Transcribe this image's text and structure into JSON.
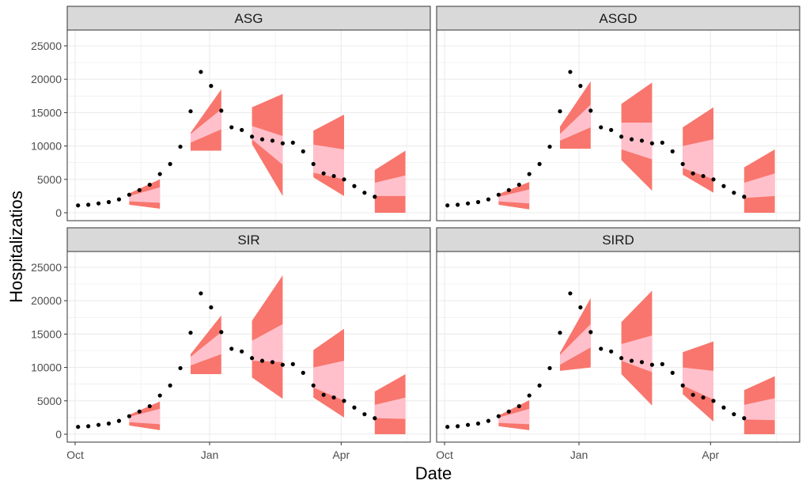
{
  "figure": {
    "xlabel": "Date",
    "ylabel": "Hospitalizatios",
    "x_ticks": [
      "Oct",
      "Jan",
      "Apr"
    ],
    "y_ticks": [
      "0",
      "5000",
      "10000",
      "15000",
      "20000",
      "25000"
    ]
  },
  "colors": {
    "outer_band": "#F8766D",
    "inner_band": "#FFC0CB",
    "points": "#000000",
    "strip": "#d9d9d9",
    "grid": "#ebebeb",
    "panel_border": "#333333"
  },
  "chart_data": [
    {
      "type": "scatter",
      "title": "ASG",
      "xlabel": "Date",
      "ylabel": "Hospitalizatios",
      "ylim": [
        0,
        25000
      ],
      "legend": "none",
      "grid": true,
      "observed": {
        "dates": [
          "2020-10-03",
          "2020-10-10",
          "2020-10-17",
          "2020-10-24",
          "2020-10-31",
          "2020-11-07",
          "2020-11-14",
          "2020-11-21",
          "2020-11-28",
          "2020-12-05",
          "2020-12-12",
          "2020-12-19",
          "2020-12-26",
          "2021-01-02",
          "2021-01-09",
          "2021-01-16",
          "2021-01-23",
          "2021-01-30",
          "2021-02-06",
          "2021-02-13",
          "2021-02-20",
          "2021-02-27",
          "2021-03-06",
          "2021-03-13",
          "2021-03-20",
          "2021-03-27",
          "2021-04-03",
          "2021-04-10",
          "2021-04-17",
          "2021-04-24",
          "2021-05-01"
        ],
        "values": [
          1100,
          1200,
          1400,
          1600,
          2000,
          2700,
          3400,
          4200,
          5800,
          7300,
          9900,
          15200,
          21100,
          19000,
          15300,
          12800,
          12400,
          11400,
          11000,
          10800,
          10400,
          10500,
          9200,
          7300,
          5900,
          5500,
          5000,
          4000,
          3000,
          2400,
          null
        ]
      },
      "forecasts": [
        {
          "x": [
            "2020-11-07",
            "2020-11-28"
          ],
          "outer": {
            "low": [
              1200,
              600
            ],
            "high": [
              2900,
              5000
            ]
          },
          "inner": {
            "low": [
              1700,
              1500
            ],
            "high": [
              2500,
              3800
            ]
          }
        },
        {
          "x": [
            "2020-12-19",
            "2021-01-09"
          ],
          "outer": {
            "low": [
              9300,
              9300
            ],
            "high": [
              12000,
              18500
            ]
          },
          "inner": {
            "low": [
              10500,
              12500
            ],
            "high": [
              11800,
              15500
            ]
          }
        },
        {
          "x": [
            "2021-01-30",
            "2021-02-20"
          ],
          "outer": {
            "low": [
              10300,
              2500
            ],
            "high": [
              15800,
              17800
            ]
          },
          "inner": {
            "low": [
              11000,
              7200
            ],
            "high": [
              13000,
              11500
            ]
          }
        },
        {
          "x": [
            "2021-03-13",
            "2021-04-03"
          ],
          "outer": {
            "low": [
              5300,
              2500
            ],
            "high": [
              12300,
              14700
            ]
          },
          "inner": {
            "low": [
              6000,
              5000
            ],
            "high": [
              10200,
              9500
            ]
          }
        },
        {
          "x": [
            "2021-04-24",
            "2021-05-15"
          ],
          "outer": {
            "low": [
              0,
              0
            ],
            "high": [
              6400,
              9300
            ]
          },
          "inner": {
            "low": [
              2500,
              2500
            ],
            "high": [
              4500,
              5600
            ]
          }
        }
      ]
    },
    {
      "type": "scatter",
      "title": "ASGD",
      "xlabel": "Date",
      "ylabel": "Hospitalizatios",
      "ylim": [
        0,
        25000
      ],
      "legend": "none",
      "grid": true,
      "observed": {
        "dates": [
          "2020-10-03",
          "2020-10-10",
          "2020-10-17",
          "2020-10-24",
          "2020-10-31",
          "2020-11-07",
          "2020-11-14",
          "2020-11-21",
          "2020-11-28",
          "2020-12-05",
          "2020-12-12",
          "2020-12-19",
          "2020-12-26",
          "2021-01-02",
          "2021-01-09",
          "2021-01-16",
          "2021-01-23",
          "2021-01-30",
          "2021-02-06",
          "2021-02-13",
          "2021-02-20",
          "2021-02-27",
          "2021-03-06",
          "2021-03-13",
          "2021-03-20",
          "2021-03-27",
          "2021-04-03",
          "2021-04-10",
          "2021-04-17",
          "2021-04-24",
          "2021-05-01"
        ],
        "values": [
          1100,
          1200,
          1400,
          1600,
          2000,
          2700,
          3400,
          4200,
          5800,
          7300,
          9900,
          15200,
          21100,
          19000,
          15300,
          12800,
          12400,
          11400,
          11000,
          10800,
          10400,
          10500,
          9200,
          7300,
          5900,
          5500,
          5000,
          4000,
          3000,
          2400,
          null
        ]
      },
      "forecasts": [
        {
          "x": [
            "2020-11-07",
            "2020-11-28"
          ],
          "outer": {
            "low": [
              1200,
              500
            ],
            "high": [
              2800,
              4600
            ]
          },
          "inner": {
            "low": [
              1700,
              1400
            ],
            "high": [
              2400,
              3500
            ]
          }
        },
        {
          "x": [
            "2020-12-19",
            "2021-01-09"
          ],
          "outer": {
            "low": [
              9600,
              9600
            ],
            "high": [
              12900,
              19700
            ]
          },
          "inner": {
            "low": [
              10800,
              12800
            ],
            "high": [
              11800,
              16200
            ]
          }
        },
        {
          "x": [
            "2021-01-30",
            "2021-02-20"
          ],
          "outer": {
            "low": [
              7900,
              3300
            ],
            "high": [
              16300,
              19500
            ]
          },
          "inner": {
            "low": [
              9500,
              8000
            ],
            "high": [
              13500,
              13500
            ]
          }
        },
        {
          "x": [
            "2021-03-13",
            "2021-04-03"
          ],
          "outer": {
            "low": [
              5700,
              3000
            ],
            "high": [
              12800,
              15800
            ]
          },
          "inner": {
            "low": [
              6700,
              5000
            ],
            "high": [
              10000,
              11000
            ]
          }
        },
        {
          "x": [
            "2021-04-24",
            "2021-05-15"
          ],
          "outer": {
            "low": [
              0,
              0
            ],
            "high": [
              6800,
              9500
            ]
          },
          "inner": {
            "low": [
              2200,
              2500
            ],
            "high": [
              4500,
              5900
            ]
          }
        }
      ]
    },
    {
      "type": "scatter",
      "title": "SIR",
      "xlabel": "Date",
      "ylabel": "Hospitalizatios",
      "ylim": [
        0,
        25000
      ],
      "legend": "none",
      "grid": true,
      "observed": {
        "dates": [
          "2020-10-03",
          "2020-10-10",
          "2020-10-17",
          "2020-10-24",
          "2020-10-31",
          "2020-11-07",
          "2020-11-14",
          "2020-11-21",
          "2020-11-28",
          "2020-12-05",
          "2020-12-12",
          "2020-12-19",
          "2020-12-26",
          "2021-01-02",
          "2021-01-09",
          "2021-01-16",
          "2021-01-23",
          "2021-01-30",
          "2021-02-06",
          "2021-02-13",
          "2021-02-20",
          "2021-02-27",
          "2021-03-06",
          "2021-03-13",
          "2021-03-20",
          "2021-03-27",
          "2021-04-03",
          "2021-04-10",
          "2021-04-17",
          "2021-04-24",
          "2021-05-01"
        ],
        "values": [
          1100,
          1200,
          1400,
          1600,
          2000,
          2700,
          3400,
          4200,
          5800,
          7300,
          9900,
          15200,
          21100,
          19000,
          15300,
          12800,
          12400,
          11400,
          11000,
          10800,
          10400,
          10500,
          9200,
          7300,
          5900,
          5500,
          5000,
          4000,
          3000,
          2400,
          null
        ]
      },
      "forecasts": [
        {
          "x": [
            "2020-11-07",
            "2020-11-28"
          ],
          "outer": {
            "low": [
              1300,
              600
            ],
            "high": [
              2900,
              4900
            ]
          },
          "inner": {
            "low": [
              1800,
              1500
            ],
            "high": [
              2600,
              3800
            ]
          }
        },
        {
          "x": [
            "2020-12-19",
            "2021-01-09"
          ],
          "outer": {
            "low": [
              9000,
              9000
            ],
            "high": [
              12000,
              17800
            ]
          },
          "inner": {
            "low": [
              10300,
              12000
            ],
            "high": [
              11600,
              15300
            ]
          }
        },
        {
          "x": [
            "2021-01-30",
            "2021-02-20"
          ],
          "outer": {
            "low": [
              8500,
              5300
            ],
            "high": [
              17000,
              23800
            ]
          },
          "inner": {
            "low": [
              11000,
              10800
            ],
            "high": [
              14000,
              16500
            ]
          }
        },
        {
          "x": [
            "2021-03-13",
            "2021-04-03"
          ],
          "outer": {
            "low": [
              5500,
              2500
            ],
            "high": [
              12600,
              15800
            ]
          },
          "inner": {
            "low": [
              7000,
              5000
            ],
            "high": [
              10000,
              11000
            ]
          }
        },
        {
          "x": [
            "2021-04-24",
            "2021-05-15"
          ],
          "outer": {
            "low": [
              0,
              0
            ],
            "high": [
              6400,
              9000
            ]
          },
          "inner": {
            "low": [
              2400,
              2300
            ],
            "high": [
              4400,
              5500
            ]
          }
        }
      ]
    },
    {
      "type": "scatter",
      "title": "SIRD",
      "xlabel": "Date",
      "ylabel": "Hospitalizatios",
      "ylim": [
        0,
        25000
      ],
      "legend": "none",
      "grid": true,
      "observed": {
        "dates": [
          "2020-10-03",
          "2020-10-10",
          "2020-10-17",
          "2020-10-24",
          "2020-10-31",
          "2020-11-07",
          "2020-11-14",
          "2020-11-21",
          "2020-11-28",
          "2020-12-05",
          "2020-12-12",
          "2020-12-19",
          "2020-12-26",
          "2021-01-02",
          "2021-01-09",
          "2021-01-16",
          "2021-01-23",
          "2021-01-30",
          "2021-02-06",
          "2021-02-13",
          "2021-02-20",
          "2021-02-27",
          "2021-03-06",
          "2021-03-13",
          "2021-03-20",
          "2021-03-27",
          "2021-04-03",
          "2021-04-10",
          "2021-04-17",
          "2021-04-24",
          "2021-05-01"
        ],
        "values": [
          1100,
          1200,
          1400,
          1600,
          2000,
          2700,
          3400,
          4200,
          5800,
          7300,
          9900,
          15200,
          21100,
          19000,
          15300,
          12800,
          12400,
          11400,
          11000,
          10800,
          10400,
          10500,
          9200,
          7300,
          5900,
          5500,
          5000,
          4000,
          3000,
          2400,
          null
        ]
      },
      "forecasts": [
        {
          "x": [
            "2020-11-07",
            "2020-11-28"
          ],
          "outer": {
            "low": [
              1200,
              600
            ],
            "high": [
              2800,
              5100
            ]
          },
          "inner": {
            "low": [
              1700,
              1500
            ],
            "high": [
              2500,
              3800
            ]
          }
        },
        {
          "x": [
            "2020-12-19",
            "2021-01-09"
          ],
          "outer": {
            "low": [
              9500,
              10000
            ],
            "high": [
              12200,
              20400
            ]
          },
          "inner": {
            "low": [
              10400,
              13000
            ],
            "high": [
              11900,
              16500
            ]
          }
        },
        {
          "x": [
            "2021-01-30",
            "2021-02-20"
          ],
          "outer": {
            "low": [
              9000,
              4300
            ],
            "high": [
              16800,
              21500
            ]
          },
          "inner": {
            "low": [
              11000,
              9300
            ],
            "high": [
              13500,
              14800
            ]
          }
        },
        {
          "x": [
            "2021-03-13",
            "2021-04-03"
          ],
          "outer": {
            "low": [
              6000,
              1900
            ],
            "high": [
              12300,
              13900
            ]
          },
          "inner": {
            "low": [
              7300,
              5200
            ],
            "high": [
              10000,
              9500
            ]
          }
        },
        {
          "x": [
            "2021-04-24",
            "2021-05-15"
          ],
          "outer": {
            "low": [
              0,
              0
            ],
            "high": [
              6600,
              8700
            ]
          },
          "inner": {
            "low": [
              2200,
              2100
            ],
            "high": [
              4400,
              5400
            ]
          }
        }
      ]
    }
  ]
}
